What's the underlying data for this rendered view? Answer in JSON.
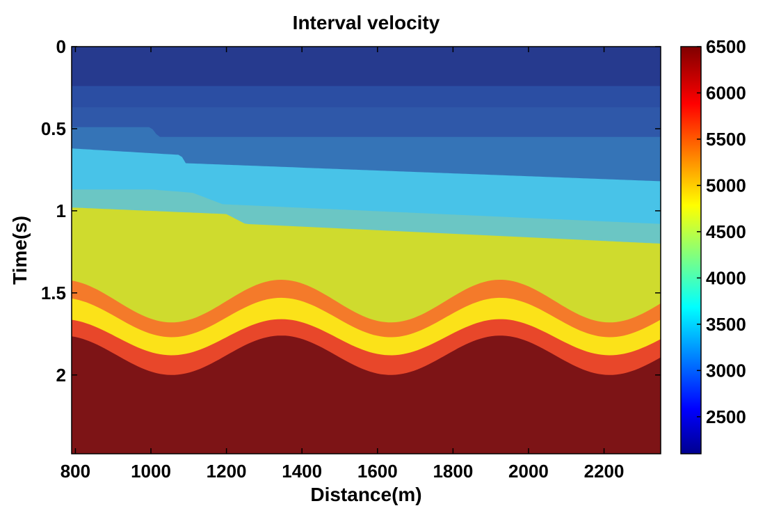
{
  "chart_data": {
    "type": "heatmap",
    "title": "Interval velocity",
    "xlabel": "Distance(m)",
    "ylabel": "Time(s)",
    "xlim": [
      790,
      2350
    ],
    "ylim": [
      0,
      2.48
    ],
    "y_reversed": true,
    "x_ticks": [
      "800",
      "1000",
      "1200",
      "1400",
      "1600",
      "1800",
      "2000",
      "2200"
    ],
    "y_ticks": [
      "0",
      "0.5",
      "1",
      "1.5",
      "2"
    ],
    "colorbar": {
      "range": [
        2100,
        6500
      ],
      "ticks": [
        "2500",
        "3000",
        "3500",
        "4000",
        "4500",
        "5000",
        "5500",
        "6000",
        "6500"
      ],
      "colormap": "jet"
    },
    "layers": [
      {
        "velocity": 2150,
        "color": "#263a8e",
        "top_time": {
          "x": [
            790,
            2350
          ],
          "t": [
            0,
            0
          ]
        }
      },
      {
        "velocity": 2800,
        "color": "#2b4ea3",
        "top_time": {
          "x": [
            790,
            2350
          ],
          "t": [
            0.24,
            0.24
          ]
        }
      },
      {
        "velocity": 3000,
        "color": "#2f58a9",
        "top_time": {
          "x": [
            790,
            2350
          ],
          "t": [
            0.37,
            0.37
          ]
        }
      },
      {
        "velocity": 3200,
        "color": "#3574b7",
        "top_time": {
          "x": [
            790,
            1000,
            1020,
            1080,
            2350
          ],
          "t": [
            0.49,
            0.49,
            0.55,
            0.55,
            0.55
          ]
        }
      },
      {
        "velocity": 3600,
        "color": "#48c3e8",
        "top_time": {
          "x": [
            790,
            1080,
            1090,
            2350
          ],
          "t": [
            0.62,
            0.66,
            0.71,
            0.82
          ]
        }
      },
      {
        "velocity": 3950,
        "color": "#6bc6c4",
        "top_time": {
          "x": [
            790,
            1000,
            1110,
            1190,
            2350
          ],
          "t": [
            0.87,
            0.87,
            0.89,
            0.96,
            1.08
          ]
        }
      },
      {
        "velocity": 4600,
        "color": "#cfdb2e",
        "top_time": {
          "x": [
            790,
            1200,
            1250,
            2350
          ],
          "t": [
            0.98,
            1.02,
            1.08,
            1.2
          ]
        }
      },
      {
        "velocity": 5300,
        "color": "#f47a2a",
        "top_time": {
          "center": 1.55,
          "amplitude": 0.13,
          "period": 580,
          "zero_x": 1055
        }
      },
      {
        "velocity": 4950,
        "color": "#fbe219",
        "top_time": {
          "center": 1.65,
          "amplitude": 0.12,
          "period": 580,
          "zero_x": 1055
        }
      },
      {
        "velocity": 5800,
        "color": "#e8472a",
        "top_time": {
          "center": 1.77,
          "amplitude": 0.11,
          "period": 580,
          "zero_x": 1055
        }
      },
      {
        "velocity": 6500,
        "color": "#7d1416",
        "top_time": {
          "center": 1.88,
          "amplitude": 0.12,
          "period": 580,
          "zero_x": 1055
        }
      }
    ]
  }
}
